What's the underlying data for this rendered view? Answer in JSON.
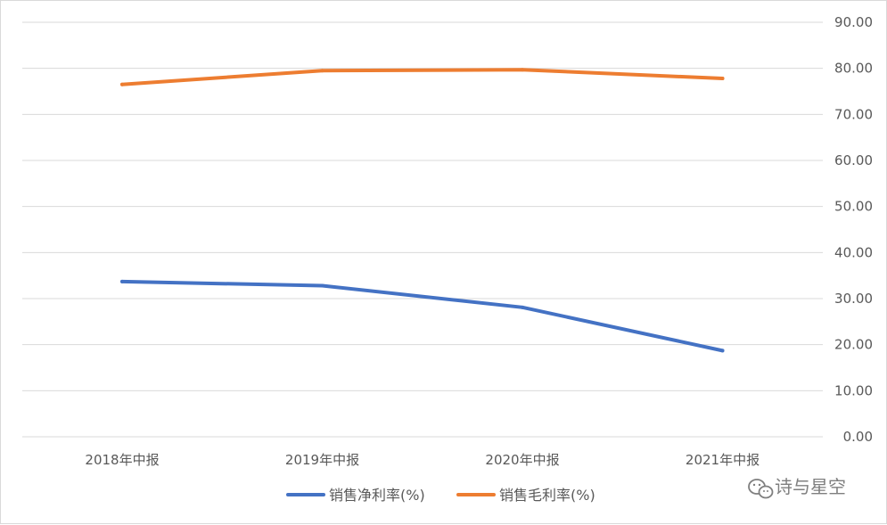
{
  "chart_data": {
    "type": "line",
    "categories": [
      "2018年中报",
      "2019年中报",
      "2020年中报",
      "2021年中报"
    ],
    "series": [
      {
        "name": "销售净利率(%)",
        "values": [
          33.7,
          32.8,
          28.1,
          18.7
        ],
        "color": "#4472C4"
      },
      {
        "name": "销售毛利率(%)",
        "values": [
          76.5,
          79.5,
          79.7,
          77.8
        ],
        "color": "#ED7D31"
      }
    ],
    "ylim": [
      0,
      90
    ],
    "yticks": [
      "0.00",
      "10.00",
      "20.00",
      "30.00",
      "40.00",
      "50.00",
      "60.00",
      "70.00",
      "80.00",
      "90.00"
    ],
    "y_axis_side": "right",
    "grid": true,
    "legend_position": "bottom",
    "title": "",
    "xlabel": "",
    "ylabel": ""
  },
  "watermark": {
    "text": "诗与星空",
    "icon": "wechat-icon"
  }
}
